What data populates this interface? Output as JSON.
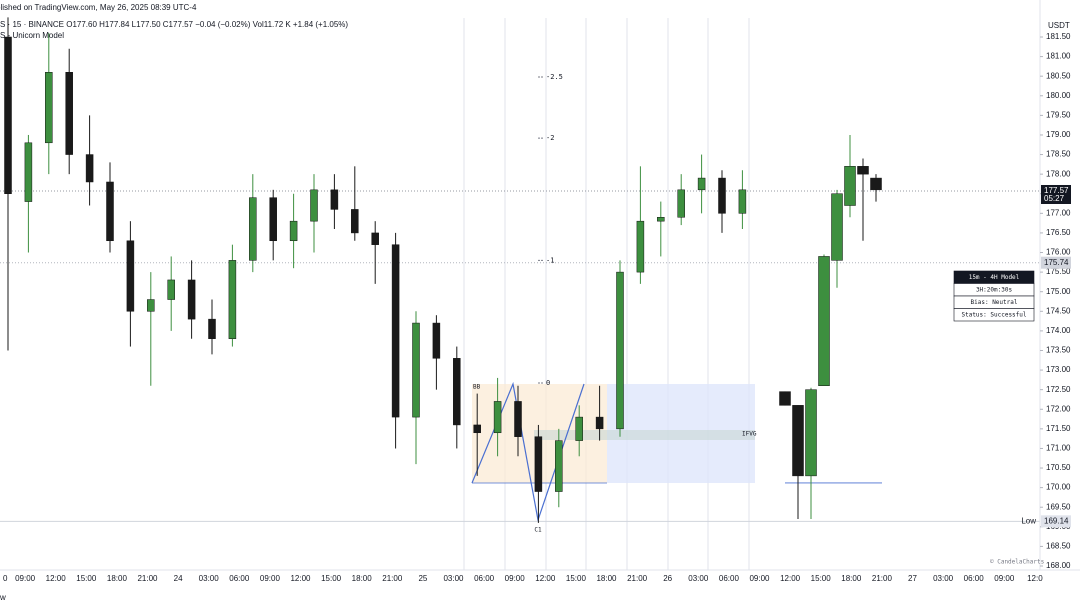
{
  "header": {
    "published": "blished on TradingView.com, May 26, 2025 08:39 UTC-4",
    "symbol_line": "S · 15 · BINANCE  O177.60  H177.84  L177.50  C177.57  −0.04 (−0.02%)  Vol11.72 K  +1.84 (+1.05%)",
    "indicator": "S - Unicorn Model",
    "currency": "USDT",
    "footer": "w"
  },
  "chart_data": {
    "type": "candlestick",
    "x_labels": [
      "0",
      "09:00",
      "12:00",
      "15:00",
      "18:00",
      "21:00",
      "24",
      "03:00",
      "06:00",
      "09:00",
      "12:00",
      "15:00",
      "18:00",
      "21:00",
      "25",
      "03:00",
      "06:00",
      "09:00",
      "12:00",
      "15:00",
      "18:00",
      "21:00",
      "26",
      "03:00",
      "06:00",
      "09:00",
      "12:00",
      "15:00",
      "18:00",
      "21:00",
      "27",
      "03:00",
      "06:00",
      "09:00",
      "12:0"
    ],
    "ylim": [
      168.0,
      181.5
    ],
    "yticks": [
      {
        "value": 168,
        "label": "168.00"
      },
      {
        "value": 168.5,
        "label": "168.50"
      },
      {
        "value": 169,
        "label": "169.00"
      },
      {
        "value": 169.5,
        "label": "169.50"
      },
      {
        "value": 170,
        "label": "170.00"
      },
      {
        "value": 170.5,
        "label": "170.50"
      },
      {
        "value": 171,
        "label": "171.00"
      },
      {
        "value": 171.5,
        "label": "171.50"
      },
      {
        "value": 172,
        "label": "172.00"
      },
      {
        "value": 172.5,
        "label": "172.50"
      },
      {
        "value": 173,
        "label": "173.00"
      },
      {
        "value": 173.5,
        "label": "173.50"
      },
      {
        "value": 174,
        "label": "174.00"
      },
      {
        "value": 174.5,
        "label": "174.50"
      },
      {
        "value": 175,
        "label": "175.00"
      },
      {
        "value": 175.5,
        "label": "175.50"
      },
      {
        "value": 176,
        "label": "176.00"
      },
      {
        "value": 176.5,
        "label": "176.50"
      },
      {
        "value": 177,
        "label": "177.00"
      },
      {
        "value": 177.5,
        "label": "177.50"
      },
      {
        "value": 178,
        "label": "178.00"
      },
      {
        "value": 178.5,
        "label": "178.50"
      },
      {
        "value": 179,
        "label": "179.00"
      },
      {
        "value": 179.5,
        "label": "179.50"
      },
      {
        "value": 180,
        "label": "180.00"
      },
      {
        "value": 180.5,
        "label": "180.50"
      },
      {
        "value": 181,
        "label": "181.00"
      },
      {
        "value": 181.5,
        "label": "181.50"
      }
    ],
    "up_color": "#3d8f3f",
    "down_color": "#1a1a1a",
    "candles": [
      {
        "o": 181.5,
        "h": 182,
        "l": 173.5,
        "c": 177.5
      },
      {
        "o": 177.3,
        "h": 179,
        "l": 176,
        "c": 178.8
      },
      {
        "o": 178.8,
        "h": 181.6,
        "l": 178,
        "c": 180.6
      },
      {
        "o": 180.6,
        "h": 181.2,
        "l": 178,
        "c": 178.5
      },
      {
        "o": 178.5,
        "h": 179.5,
        "l": 177.2,
        "c": 177.8
      },
      {
        "o": 177.8,
        "h": 178.3,
        "l": 176,
        "c": 176.3
      },
      {
        "o": 176.3,
        "h": 176.8,
        "l": 173.6,
        "c": 174.5
      },
      {
        "o": 174.5,
        "h": 175.5,
        "l": 172.6,
        "c": 174.8
      },
      {
        "o": 174.8,
        "h": 175.9,
        "l": 174,
        "c": 175.3
      },
      {
        "o": 175.3,
        "h": 175.8,
        "l": 173.8,
        "c": 174.3
      },
      {
        "o": 174.3,
        "h": 174.8,
        "l": 173.4,
        "c": 173.8
      },
      {
        "o": 173.8,
        "h": 176.2,
        "l": 173.6,
        "c": 175.8
      },
      {
        "o": 175.8,
        "h": 178,
        "l": 175.5,
        "c": 177.4
      },
      {
        "o": 177.4,
        "h": 177.6,
        "l": 175.8,
        "c": 176.3
      },
      {
        "o": 176.3,
        "h": 177.5,
        "l": 175.6,
        "c": 176.8
      },
      {
        "o": 176.8,
        "h": 178,
        "l": 176,
        "c": 177.6
      },
      {
        "o": 177.6,
        "h": 178,
        "l": 176.6,
        "c": 177.1
      },
      {
        "o": 177.1,
        "h": 178.2,
        "l": 176.3,
        "c": 176.5
      },
      {
        "o": 176.5,
        "h": 176.8,
        "l": 175.2,
        "c": 176.2
      },
      {
        "o": 176.2,
        "h": 176.5,
        "l": 171,
        "c": 171.8
      },
      {
        "o": 171.8,
        "h": 174.5,
        "l": 170.6,
        "c": 174.2
      },
      {
        "o": 174.2,
        "h": 174.4,
        "l": 172.5,
        "c": 173.3
      },
      {
        "o": 173.3,
        "h": 173.6,
        "l": 171,
        "c": 171.6
      },
      {
        "o": 171.6,
        "h": 172.4,
        "l": 170.3,
        "c": 171.4
      },
      {
        "o": 171.4,
        "h": 172.8,
        "l": 170.8,
        "c": 172.2
      },
      {
        "o": 172.2,
        "h": 172.6,
        "l": 170.8,
        "c": 171.3
      },
      {
        "o": 171.3,
        "h": 171.6,
        "l": 169.1,
        "c": 169.9
      },
      {
        "o": 169.9,
        "h": 171.5,
        "l": 169.5,
        "c": 171.2
      },
      {
        "o": 171.2,
        "h": 172.1,
        "l": 170.8,
        "c": 171.8
      },
      {
        "o": 171.8,
        "h": 172.6,
        "l": 171.2,
        "c": 171.5
      },
      {
        "o": 171.5,
        "h": 175.8,
        "l": 171.3,
        "c": 175.5
      },
      {
        "o": 175.5,
        "h": 178.2,
        "l": 175.2,
        "c": 176.8
      },
      {
        "o": 176.8,
        "h": 177.3,
        "l": 175.9,
        "c": 176.9
      },
      {
        "o": 176.9,
        "h": 178,
        "l": 176.7,
        "c": 177.6
      },
      {
        "o": 177.6,
        "h": 178.5,
        "l": 177,
        "c": 177.9
      },
      {
        "o": 177.9,
        "h": 178.1,
        "l": 176.5,
        "c": 177
      },
      {
        "o": 177,
        "h": 178.1,
        "l": 176.6,
        "c": 177.6
      }
    ],
    "model_candles": [
      {
        "o": 172.45,
        "h": 172.45,
        "l": 172.1,
        "c": 172.1
      },
      {
        "o": 172.1,
        "h": 172.1,
        "l": 169.2,
        "c": 170.3
      },
      {
        "o": 170.3,
        "h": 172.55,
        "l": 169.2,
        "c": 172.5
      },
      {
        "o": 172.6,
        "h": 175.95,
        "l": 172.6,
        "c": 175.9
      },
      {
        "o": 175.8,
        "h": 177.6,
        "l": 175.1,
        "c": 177.5
      },
      {
        "o": 177.2,
        "h": 179,
        "l": 176.9,
        "c": 178.2
      },
      {
        "o": 178.2,
        "h": 178.4,
        "l": 176.3,
        "c": 178
      },
      {
        "o": 177.9,
        "h": 178,
        "l": 177.3,
        "c": 177.6
      }
    ],
    "fib_levels": [
      {
        "label": "-2.5",
        "value": 180.48
      },
      {
        "label": "-2",
        "value": 178.92
      },
      {
        "label": "-1",
        "value": 175.8
      },
      {
        "label": "0",
        "value": 172.67
      }
    ],
    "last_price": {
      "value": 177.57,
      "label": "177.57",
      "countdown": "05:27"
    },
    "prev_close": 175.74,
    "low": {
      "label": "Low",
      "value": 169.14,
      "price_label": "169.14"
    },
    "annotations": {
      "bb": "BB",
      "c1": "C1",
      "ifvg": "IFVG",
      "credit": "© CandelaCharts"
    },
    "model_table": [
      "15m - 4H Model",
      "3H:20m:30s",
      "Bias: Neutral",
      "Status: Successful"
    ]
  }
}
